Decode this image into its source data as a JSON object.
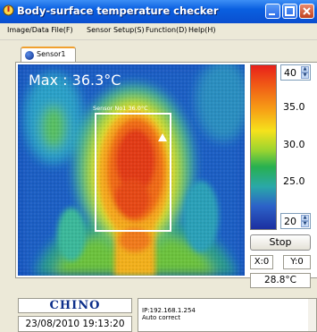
{
  "window": {
    "title": "Body-surface temperature checker"
  },
  "menu": {
    "items": [
      {
        "label": "Image/Data File(F)"
      },
      {
        "label": "Sensor Setup(S)"
      },
      {
        "label": "Function(D)"
      },
      {
        "label": "Help(H)"
      }
    ]
  },
  "tabs": [
    {
      "label": "Sensor1"
    }
  ],
  "thermal": {
    "max_label": "Max :  36.3°C",
    "sensor_label": "Sensor No1 36.0°C"
  },
  "scale": {
    "max_value": "40",
    "min_value": "20",
    "ticks": [
      "35.0",
      "30.0",
      "25.0"
    ]
  },
  "controls": {
    "stop_label": "Stop",
    "x_label": "X:0",
    "y_label": "Y:0",
    "current_temp": "28.8°C"
  },
  "footer": {
    "logo": "CHINO",
    "datetime": "23/08/2010 19:13:20",
    "log_lines": [
      "IP:192.168.1.254",
      "Auto correct"
    ]
  },
  "colors": {
    "titlebar": "#0a5fe0",
    "hot": "#e8201a",
    "cold": "#1c2fa0",
    "logo": "#0c2e8a"
  }
}
